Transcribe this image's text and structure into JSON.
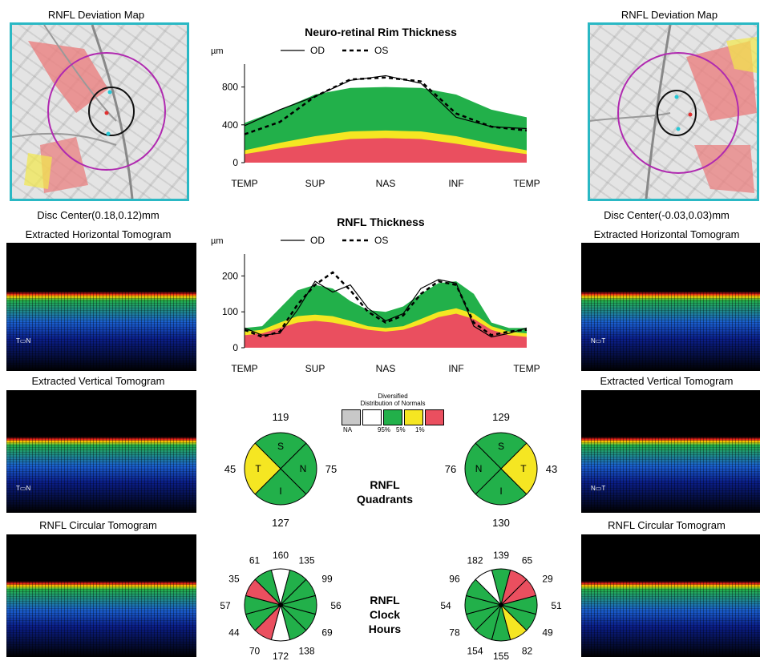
{
  "left": {
    "map_title": "RNFL Deviation Map",
    "disc_center": "Disc Center(0.18,0.12)mm",
    "horiz_title": "Extracted Horizontal Tomogram",
    "vert_title": "Extracted Vertical Tomogram",
    "circ_title": "RNFL Circular Tomogram",
    "horiz_orient": [
      "T",
      "N"
    ],
    "vert_orient": [
      "T",
      "N"
    ]
  },
  "right": {
    "map_title": "RNFL Deviation Map",
    "disc_center": "Disc Center(-0.03,0.03)mm",
    "horiz_title": "Extracted Horizontal Tomogram",
    "vert_title": "Extracted Vertical Tomogram",
    "circ_title": "RNFL Circular Tomogram",
    "horiz_orient": [
      "N",
      "T"
    ],
    "vert_orient": [
      "N",
      "T"
    ]
  },
  "colors": {
    "normal_green": "#22b04a",
    "yellow": "#f5e622",
    "red": "#ea4f5f",
    "na_gray": "#c8c8c8",
    "white": "#ffffff",
    "fundus_border": "#2ab8c4"
  },
  "chart_data": [
    {
      "type": "area",
      "title": "Neuro-retinal Rim Thickness",
      "ylabel": "µm",
      "categories": [
        "TEMP",
        "SUP",
        "NAS",
        "INF",
        "TEMP"
      ],
      "yticks": [
        0,
        400,
        800
      ],
      "ylim": [
        0,
        1000
      ],
      "legend": [
        "OD",
        "OS"
      ],
      "x": [
        0,
        0.125,
        0.25,
        0.375,
        0.5,
        0.625,
        0.75,
        0.875,
        1.0
      ],
      "bands": {
        "red_top": [
          90,
          150,
          200,
          250,
          260,
          250,
          200,
          140,
          90
        ],
        "yellow_top": [
          130,
          210,
          280,
          330,
          340,
          330,
          280,
          200,
          130
        ],
        "green_top": [
          420,
          560,
          720,
          790,
          800,
          790,
          720,
          560,
          480
        ]
      },
      "series": [
        {
          "name": "OD",
          "values": [
            390,
            560,
            700,
            870,
            920,
            840,
            480,
            380,
            360
          ]
        },
        {
          "name": "OS",
          "values": [
            300,
            430,
            700,
            880,
            900,
            860,
            520,
            380,
            340
          ]
        }
      ]
    },
    {
      "type": "area",
      "title": "RNFL Thickness",
      "ylabel": "µm",
      "categories": [
        "TEMP",
        "SUP",
        "NAS",
        "INF",
        "TEMP"
      ],
      "yticks": [
        0,
        100,
        200
      ],
      "ylim": [
        0,
        250
      ],
      "legend": [
        "OD",
        "OS"
      ],
      "x": [
        0,
        0.0625,
        0.125,
        0.1875,
        0.25,
        0.3125,
        0.375,
        0.4375,
        0.5,
        0.5625,
        0.625,
        0.6875,
        0.75,
        0.8125,
        0.875,
        0.9375,
        1.0
      ],
      "bands": {
        "red_top": [
          35,
          40,
          55,
          70,
          75,
          70,
          60,
          50,
          45,
          50,
          65,
          85,
          95,
          80,
          50,
          35,
          30
        ],
        "yellow_top": [
          45,
          50,
          70,
          88,
          92,
          88,
          75,
          60,
          55,
          60,
          80,
          100,
          110,
          95,
          60,
          45,
          40
        ],
        "green_top": [
          55,
          60,
          110,
          160,
          175,
          165,
          130,
          105,
          100,
          115,
          150,
          180,
          185,
          150,
          70,
          55,
          55
        ]
      },
      "series": [
        {
          "name": "OD",
          "values": [
            55,
            35,
            40,
            105,
            185,
            155,
            175,
            110,
            75,
            95,
            165,
            190,
            180,
            60,
            30,
            40,
            55
          ]
        },
        {
          "name": "OS",
          "values": [
            50,
            30,
            45,
            120,
            175,
            210,
            160,
            100,
            70,
            90,
            150,
            185,
            175,
            70,
            35,
            45,
            50
          ]
        }
      ]
    },
    {
      "type": "pie",
      "title": "RNFL Quadrants",
      "eye": "OD",
      "order": [
        "S",
        "N",
        "I",
        "T"
      ],
      "labels": [
        "S",
        "N",
        "I",
        "T"
      ],
      "values": [
        119,
        75,
        127,
        45
      ],
      "classes": [
        "green",
        "green",
        "green",
        "yellow"
      ]
    },
    {
      "type": "pie",
      "title": "RNFL Quadrants",
      "eye": "OS",
      "order": [
        "S",
        "T",
        "I",
        "N"
      ],
      "labels": [
        "S",
        "T",
        "I",
        "N"
      ],
      "values": [
        129,
        43,
        130,
        76
      ],
      "classes": [
        "green",
        "yellow",
        "green",
        "green"
      ]
    },
    {
      "type": "pie",
      "title": "RNFL Clock Hours",
      "eye": "OD",
      "values": [
        160,
        135,
        99,
        56,
        69,
        138,
        172,
        70,
        44,
        57,
        35,
        61
      ],
      "classes": [
        "white",
        "green",
        "green",
        "green",
        "green",
        "green",
        "white",
        "red",
        "green",
        "green",
        "red",
        "green"
      ]
    },
    {
      "type": "pie",
      "title": "RNFL Clock Hours",
      "eye": "OS",
      "values": [
        139,
        65,
        29,
        51,
        49,
        82,
        155,
        154,
        78,
        54,
        96,
        182
      ],
      "classes": [
        "green",
        "red",
        "red",
        "green",
        "green",
        "yellow",
        "green",
        "green",
        "green",
        "green",
        "green",
        "white"
      ]
    }
  ],
  "legend": {
    "title_line1": "Diversified",
    "title_line2": "Distribution of Normals",
    "labels": [
      "NA",
      "95%",
      "5%",
      "1%"
    ]
  },
  "center_titles": {
    "quadrants_1": "RNFL",
    "quadrants_2": "Quadrants",
    "clock_1": "RNFL",
    "clock_2": "Clock",
    "clock_3": "Hours"
  }
}
